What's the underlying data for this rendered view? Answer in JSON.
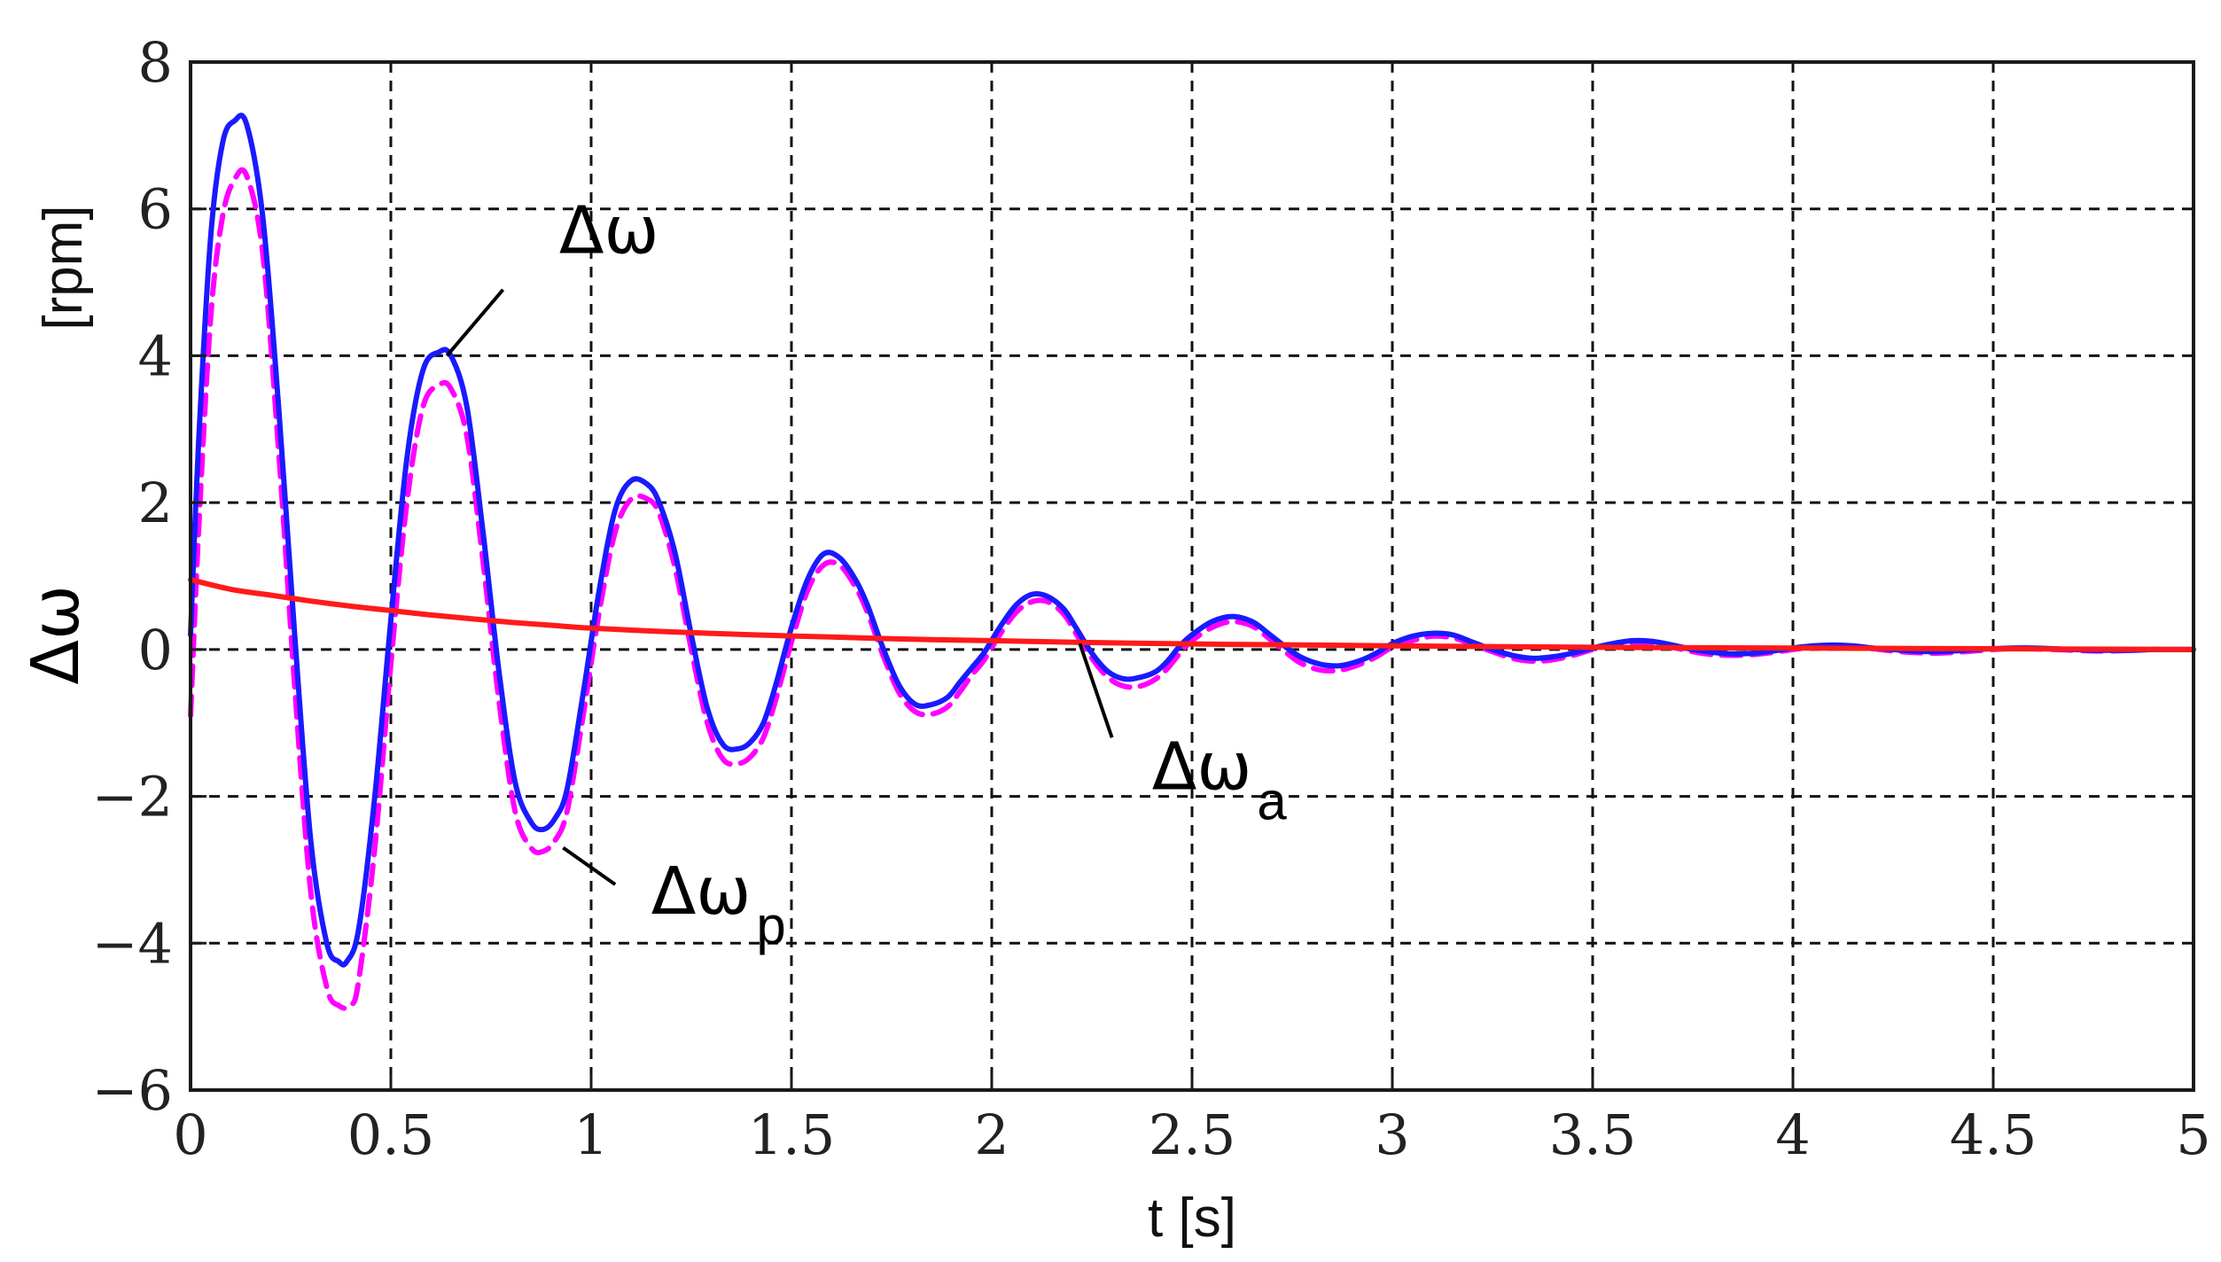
{
  "chart_data": {
    "type": "line",
    "title": "",
    "xlabel": "t [s]",
    "ylabel_symbol": "Δω",
    "ylabel_unit": "[rpm]",
    "xlim": [
      0,
      5
    ],
    "ylim": [
      -6,
      8
    ],
    "grid": true,
    "x_ticks": [
      0,
      0.5,
      1,
      1.5,
      2,
      2.5,
      3,
      3.5,
      4,
      4.5,
      5
    ],
    "x_tick_labels": [
      "0",
      "0.5",
      "1",
      "1.5",
      "2",
      "2.5",
      "3",
      "3.5",
      "4",
      "4.5",
      "5"
    ],
    "y_ticks": [
      -6,
      -4,
      -2,
      0,
      2,
      4,
      6,
      8
    ],
    "y_tick_labels": [
      "−6",
      "−4",
      "−2",
      "0",
      "2",
      "4",
      "6",
      "8"
    ],
    "series": [
      {
        "name": "Δω",
        "color": "#1a1aff",
        "style": "solid",
        "x": [
          0,
          0.02,
          0.05,
          0.08,
          0.11,
          0.14,
          0.18,
          0.22,
          0.26,
          0.3,
          0.34,
          0.37,
          0.39,
          0.42,
          0.46,
          0.5,
          0.54,
          0.58,
          0.62,
          0.65,
          0.69,
          0.73,
          0.77,
          0.81,
          0.85,
          0.88,
          0.91,
          0.94,
          0.98,
          1.02,
          1.06,
          1.1,
          1.14,
          1.17,
          1.21,
          1.25,
          1.29,
          1.33,
          1.37,
          1.4,
          1.43,
          1.46,
          1.5,
          1.54,
          1.58,
          1.62,
          1.66,
          1.69,
          1.73,
          1.77,
          1.81,
          1.85,
          1.89,
          1.92,
          1.95,
          1.98,
          2.02,
          2.06,
          2.1,
          2.14,
          2.18,
          2.21,
          2.25,
          2.29,
          2.33,
          2.37,
          2.41,
          2.44,
          2.47,
          2.5,
          2.55,
          2.6,
          2.65,
          2.69,
          2.73,
          2.77,
          2.82,
          2.87,
          2.92,
          2.96,
          3.0,
          3.05,
          3.1,
          3.15,
          3.2,
          3.25,
          3.3,
          3.35,
          3.4,
          3.45,
          3.5,
          3.55,
          3.6,
          3.65,
          3.7,
          3.75,
          3.8,
          3.85,
          3.9,
          3.95,
          4.0,
          4.05,
          4.1,
          4.15,
          4.2,
          4.25,
          4.3,
          4.35,
          4.4,
          4.45,
          4.5,
          4.55,
          4.6,
          4.65,
          4.7,
          4.75,
          4.8,
          4.85,
          4.9,
          4.95,
          5.0
        ],
        "y": [
          0.2,
          2.8,
          5.6,
          6.9,
          7.2,
          7.15,
          5.9,
          3.3,
          0.2,
          -2.6,
          -4.0,
          -4.25,
          -4.25,
          -3.8,
          -2.0,
          0.4,
          2.6,
          3.8,
          4.05,
          4.0,
          3.3,
          1.6,
          -0.3,
          -1.8,
          -2.35,
          -2.45,
          -2.3,
          -1.9,
          -0.6,
          0.8,
          1.9,
          2.3,
          2.25,
          2.0,
          1.3,
          0.2,
          -0.8,
          -1.3,
          -1.35,
          -1.25,
          -1.0,
          -0.5,
          0.3,
          0.95,
          1.3,
          1.25,
          0.95,
          0.6,
          0.0,
          -0.5,
          -0.75,
          -0.75,
          -0.65,
          -0.45,
          -0.25,
          -0.05,
          0.3,
          0.6,
          0.75,
          0.72,
          0.55,
          0.3,
          -0.05,
          -0.3,
          -0.4,
          -0.38,
          -0.3,
          -0.15,
          0.05,
          0.2,
          0.38,
          0.45,
          0.38,
          0.22,
          0.05,
          -0.1,
          -0.2,
          -0.22,
          -0.15,
          -0.05,
          0.08,
          0.18,
          0.22,
          0.2,
          0.1,
          0.0,
          -0.08,
          -0.12,
          -0.1,
          -0.05,
          0.02,
          0.08,
          0.12,
          0.11,
          0.06,
          0.0,
          -0.04,
          -0.06,
          -0.05,
          -0.02,
          0.02,
          0.05,
          0.06,
          0.05,
          0.02,
          0.0,
          -0.02,
          -0.03,
          -0.02,
          0.0,
          0.01,
          0.02,
          0.02,
          0.01,
          0.0,
          -0.01,
          -0.01,
          -0.01,
          0.0,
          0.0,
          0.0
        ]
      },
      {
        "name": "Δω_p",
        "color": "#ff00ff",
        "style": "dashed",
        "x": [
          0,
          0.02,
          0.05,
          0.08,
          0.11,
          0.14,
          0.18,
          0.22,
          0.26,
          0.3,
          0.34,
          0.37,
          0.4,
          0.42,
          0.46,
          0.5,
          0.54,
          0.58,
          0.62,
          0.65,
          0.69,
          0.73,
          0.77,
          0.81,
          0.85,
          0.88,
          0.91,
          0.94,
          0.98,
          1.02,
          1.06,
          1.1,
          1.14,
          1.17,
          1.21,
          1.25,
          1.29,
          1.33,
          1.37,
          1.4,
          1.43,
          1.46,
          1.5,
          1.54,
          1.58,
          1.62,
          1.66,
          1.69,
          1.73,
          1.77,
          1.81,
          1.85,
          1.89,
          1.92,
          1.95,
          1.98,
          2.02,
          2.06,
          2.1,
          2.14,
          2.18,
          2.21,
          2.25,
          2.29,
          2.33,
          2.37,
          2.41,
          2.44,
          2.47,
          2.5,
          2.55,
          2.6,
          2.65,
          2.69,
          2.73,
          2.77,
          2.82,
          2.87,
          2.92,
          2.96,
          3.0,
          3.05,
          3.1,
          3.15,
          3.2,
          3.25,
          3.3,
          3.35,
          3.4,
          3.45,
          3.5,
          3.55,
          3.6,
          3.65,
          3.7,
          3.75,
          3.8,
          3.85,
          3.9,
          3.95,
          4.0,
          4.05,
          4.1,
          4.15,
          4.2,
          4.25,
          4.3,
          4.35,
          4.4,
          4.45,
          4.5,
          4.55,
          4.6,
          4.65,
          4.7,
          4.75,
          4.8,
          4.85,
          4.9,
          4.95,
          5.0
        ],
        "y": [
          -0.9,
          1.6,
          4.5,
          5.9,
          6.4,
          6.45,
          5.4,
          2.7,
          -0.5,
          -3.3,
          -4.6,
          -4.85,
          -4.85,
          -4.5,
          -2.7,
          -0.2,
          2.0,
          3.3,
          3.6,
          3.55,
          2.9,
          1.2,
          -0.7,
          -2.2,
          -2.7,
          -2.75,
          -2.6,
          -2.2,
          -0.9,
          0.5,
          1.6,
          2.05,
          2.05,
          1.85,
          1.1,
          0.0,
          -1.0,
          -1.5,
          -1.55,
          -1.45,
          -1.2,
          -0.7,
          0.1,
          0.8,
          1.15,
          1.15,
          0.85,
          0.5,
          -0.1,
          -0.6,
          -0.85,
          -0.88,
          -0.78,
          -0.58,
          -0.35,
          -0.15,
          0.2,
          0.5,
          0.65,
          0.65,
          0.48,
          0.22,
          -0.12,
          -0.38,
          -0.5,
          -0.5,
          -0.4,
          -0.25,
          -0.05,
          0.12,
          0.3,
          0.38,
          0.32,
          0.16,
          -0.02,
          -0.18,
          -0.28,
          -0.28,
          -0.2,
          -0.1,
          0.03,
          0.12,
          0.18,
          0.16,
          0.07,
          -0.03,
          -0.12,
          -0.16,
          -0.14,
          -0.08,
          0.0,
          0.06,
          0.09,
          0.08,
          0.03,
          -0.03,
          -0.07,
          -0.08,
          -0.07,
          -0.04,
          0.0,
          0.03,
          0.04,
          0.03,
          0.01,
          -0.02,
          -0.04,
          -0.05,
          -0.04,
          -0.02,
          0.0,
          0.01,
          0.01,
          0.0,
          -0.01,
          -0.02,
          -0.02,
          -0.01,
          0.0,
          0.0,
          0.0
        ]
      },
      {
        "name": "Δω_a",
        "color": "#ff1a1a",
        "style": "solid",
        "x": [
          0,
          0.1,
          0.2,
          0.3,
          0.4,
          0.5,
          0.6,
          0.7,
          0.8,
          0.9,
          1.0,
          1.2,
          1.4,
          1.6,
          1.8,
          2.0,
          2.3,
          2.6,
          3.0,
          3.5,
          4.0,
          4.5,
          5.0
        ],
        "y": [
          0.95,
          0.82,
          0.74,
          0.66,
          0.59,
          0.53,
          0.47,
          0.42,
          0.37,
          0.33,
          0.29,
          0.24,
          0.2,
          0.17,
          0.14,
          0.12,
          0.09,
          0.07,
          0.05,
          0.03,
          0.02,
          0.01,
          0.0
        ]
      }
    ],
    "annotations": [
      {
        "symbol": "Δω",
        "subscript": "",
        "text_x": 0.92,
        "text_y": 5.4,
        "arrow_from_x": 0.78,
        "arrow_from_y": 4.9,
        "arrow_to_x": 0.64,
        "arrow_to_y": 4.0
      },
      {
        "symbol": "Δω",
        "subscript": "p",
        "text_x": 1.15,
        "text_y": -3.6,
        "arrow_from_x": 1.06,
        "arrow_from_y": -3.2,
        "arrow_to_x": 0.93,
        "arrow_to_y": -2.7
      },
      {
        "symbol": "Δω",
        "subscript": "a",
        "text_x": 2.4,
        "text_y": -1.9,
        "arrow_from_x": 2.3,
        "arrow_from_y": -1.2,
        "arrow_to_x": 2.22,
        "arrow_to_y": 0.08
      }
    ]
  }
}
